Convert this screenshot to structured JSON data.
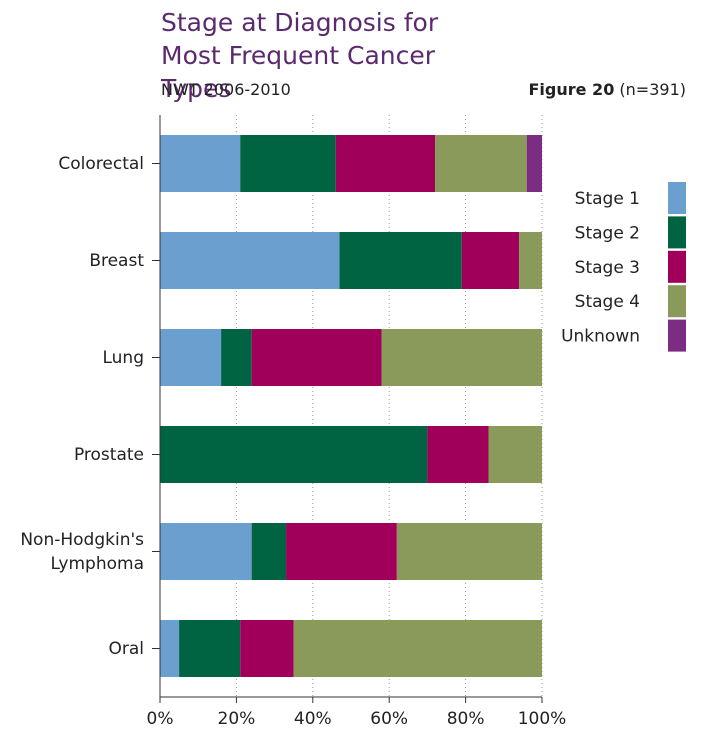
{
  "chart_data": {
    "type": "stacked-barh",
    "title": "Stage at Diagnosis for Most Frequent Cancer Types",
    "subtitle": "NWT 2006-2010",
    "figure_label": "Figure 20",
    "figure_note": "(n=391)",
    "categories": [
      "Colorectal",
      "Breast",
      "Lung",
      "Prostate",
      "Non-Hodgkin's Lymphoma",
      "Oral"
    ],
    "series": [
      {
        "name": "Stage 1",
        "color": "#6b9fd0",
        "values": [
          21,
          47,
          16,
          0,
          24,
          5
        ]
      },
      {
        "name": "Stage 2",
        "color": "#006341",
        "values": [
          25,
          32,
          8,
          70,
          9,
          16
        ]
      },
      {
        "name": "Stage 3",
        "color": "#a0005a",
        "values": [
          26,
          15,
          34,
          16,
          29,
          14
        ]
      },
      {
        "name": "Stage 4",
        "color": "#8a9a5b",
        "values": [
          24,
          6,
          42,
          14,
          38,
          65
        ]
      },
      {
        "name": "Unknown",
        "color": "#7b2c83",
        "values": [
          4,
          0,
          0,
          0,
          0,
          0
        ]
      }
    ],
    "xlim": [
      0,
      100
    ],
    "xticks": [
      {
        "value": 0,
        "label": "0%"
      },
      {
        "value": 20,
        "label": "20%"
      },
      {
        "value": 40,
        "label": "40%"
      },
      {
        "value": 60,
        "label": "60%"
      },
      {
        "value": 80,
        "label": "80%"
      },
      {
        "value": 100,
        "label": "100%"
      }
    ],
    "grid": true,
    "legend": "right"
  }
}
